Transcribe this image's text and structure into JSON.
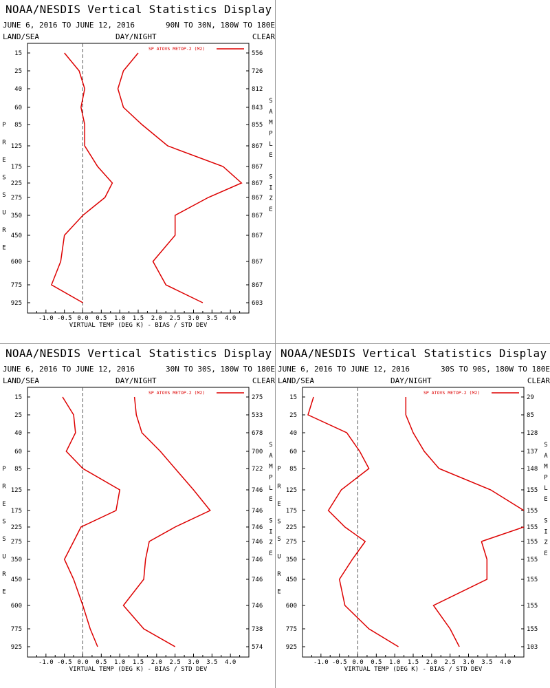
{
  "panels": [
    {
      "title": "NOAA/NESDIS Vertical Statistics Display",
      "date_range": "JUNE 6, 2016 TO JUNE 12, 2016",
      "region": "90N TO 30N, 180W TO 180E",
      "land_sea": "LAND/SEA",
      "day_night": "DAY/NIGHT",
      "clear": "CLEAR",
      "left_axis_label": "PRESSURE",
      "right_axis_label": "SAMPLE SIZE",
      "xlabel": "VIRTUAL TEMP (DEG K) - BIAS / STD DEV",
      "legend": "SP ATOVS METOP-2 (M2)",
      "sample_sizes": [
        "556",
        "726",
        "812",
        "843",
        "855",
        "867",
        "867",
        "867",
        "867",
        "867",
        "867",
        "867",
        "867",
        "603"
      ]
    },
    {
      "title": "NOAA/NESDIS Vertical Statistics Display",
      "date_range": "JUNE 6, 2016 TO JUNE 12, 2016",
      "region": "30N TO 30S, 180W TO 180E",
      "land_sea": "LAND/SEA",
      "day_night": "DAY/NIGHT",
      "clear": "CLEAR",
      "left_axis_label": "PRESSURE",
      "right_axis_label": "SAMPLE SIZE",
      "xlabel": "VIRTUAL TEMP (DEG K) - BIAS / STD DEV",
      "legend": "SP ATOVS METOP-2 (M2)",
      "sample_sizes": [
        "275",
        "533",
        "678",
        "700",
        "722",
        "746",
        "746",
        "746",
        "746",
        "746",
        "746",
        "746",
        "738",
        "574"
      ]
    },
    {
      "title": "NOAA/NESDIS Vertical Statistics Display",
      "date_range": "JUNE 6, 2016 TO JUNE 12, 2016",
      "region": "30S TO 90S, 180W TO 180E",
      "land_sea": "LAND/SEA",
      "day_night": "DAY/NIGHT",
      "clear": "CLEAR",
      "left_axis_label": "PRESSURE",
      "right_axis_label": "SAMPLE SIZE",
      "xlabel": "VIRTUAL TEMP (DEG K) - BIAS / STD DEV",
      "legend": "SP ATOVS METOP-2 (M2)",
      "sample_sizes": [
        "29",
        "85",
        "128",
        "137",
        "148",
        "155",
        "155",
        "155",
        "155",
        "155",
        "155",
        "155",
        "155",
        "103"
      ]
    }
  ],
  "chart_data": [
    {
      "type": "line",
      "pressure_levels": [
        "15",
        "25",
        "40",
        "60",
        "85",
        "125",
        "175",
        "225",
        "275",
        "350",
        "450",
        "600",
        "775",
        "925"
      ],
      "xlim": [
        -1.5,
        4.5
      ],
      "x_ticks": [
        "-1.0",
        "-0.5",
        "0.0",
        "0.5",
        "1.0",
        "1.5",
        "2.0",
        "2.5",
        "3.0",
        "3.5",
        "4.0"
      ],
      "color": "#dd0000",
      "series": [
        {
          "name": "bias",
          "values": [
            -0.5,
            -0.1,
            0.05,
            -0.05,
            0.05,
            0.05,
            0.4,
            0.8,
            0.6,
            0.0,
            -0.5,
            -0.6,
            -0.85,
            0.0
          ]
        },
        {
          "name": "std dev",
          "values": [
            1.5,
            1.1,
            0.95,
            1.1,
            1.6,
            2.3,
            3.8,
            4.3,
            3.4,
            2.5,
            2.5,
            1.9,
            2.25,
            3.25
          ]
        }
      ]
    },
    {
      "type": "line",
      "pressure_levels": [
        "15",
        "25",
        "40",
        "60",
        "85",
        "125",
        "175",
        "225",
        "275",
        "350",
        "450",
        "600",
        "775",
        "925"
      ],
      "xlim": [
        -1.5,
        4.5
      ],
      "x_ticks": [
        "-1.0",
        "-0.5",
        "0.0",
        "0.5",
        "1.0",
        "1.5",
        "2.0",
        "2.5",
        "3.0",
        "3.5",
        "4.0"
      ],
      "color": "#dd0000",
      "series": [
        {
          "name": "bias",
          "values": [
            -0.55,
            -0.25,
            -0.2,
            -0.45,
            0.0,
            1.0,
            0.9,
            -0.05,
            -0.25,
            -0.5,
            -0.25,
            0.0,
            0.2,
            0.4
          ]
        },
        {
          "name": "std dev",
          "values": [
            1.4,
            1.45,
            1.6,
            2.1,
            2.5,
            3.0,
            3.45,
            2.5,
            1.8,
            1.7,
            1.65,
            1.1,
            1.65,
            2.5
          ]
        }
      ]
    },
    {
      "type": "line",
      "pressure_levels": [
        "15",
        "25",
        "40",
        "60",
        "85",
        "125",
        "175",
        "225",
        "275",
        "350",
        "450",
        "600",
        "775",
        "925"
      ],
      "xlim": [
        -1.5,
        4.5
      ],
      "x_ticks": [
        "-1.0",
        "-0.5",
        "0.0",
        "0.5",
        "1.0",
        "1.5",
        "2.0",
        "2.5",
        "3.0",
        "3.5",
        "4.0"
      ],
      "color": "#dd0000",
      "series": [
        {
          "name": "bias",
          "values": [
            -1.2,
            -1.35,
            -0.3,
            0.05,
            0.3,
            -0.45,
            -0.8,
            -0.35,
            0.2,
            -0.15,
            -0.5,
            -0.35,
            0.3,
            1.1
          ]
        },
        {
          "name": "std dev",
          "values": [
            1.3,
            1.3,
            1.5,
            1.8,
            2.2,
            3.6,
            4.5,
            null,
            3.35,
            3.5,
            3.5,
            2.05,
            2.5,
            2.75
          ]
        },
        {
          "name": "std dev (upper right)",
          "values": [
            null,
            null,
            null,
            null,
            null,
            null,
            null,
            4.5,
            3.35,
            null,
            null,
            null,
            null,
            null
          ]
        }
      ]
    }
  ]
}
